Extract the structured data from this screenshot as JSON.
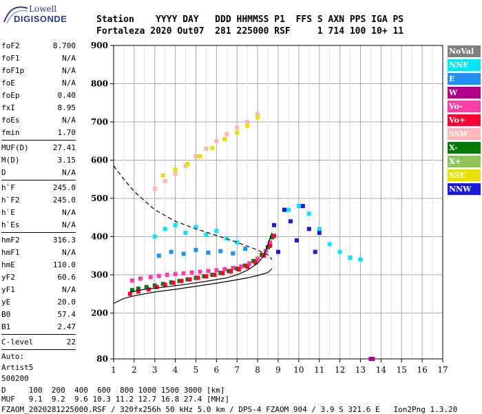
{
  "logo": {
    "line1": "Lowell",
    "line2": "DIGISONDE"
  },
  "header": {
    "row1": "Station    YYYY DAY   DDD HHMMSS P1  FFS S AXN PPS IGA PS",
    "row2": "Fortaleza 2020 Out07  281 225000 RSF     1 714 100 10+ 11"
  },
  "params": {
    "group1": [
      {
        "k": "foF2",
        "v": "8.700"
      },
      {
        "k": "foF1",
        "v": "N/A"
      },
      {
        "k": "foF1p",
        "v": "N/A"
      },
      {
        "k": "foE",
        "v": "N/A"
      },
      {
        "k": "foEp",
        "v": "0.40"
      },
      {
        "k": "fxI",
        "v": "8.95"
      },
      {
        "k": "foEs",
        "v": "N/A"
      },
      {
        "k": "fmin",
        "v": "1.70"
      }
    ],
    "group2": [
      {
        "k": "MUF(D)",
        "v": "27.41"
      },
      {
        "k": "M(D)",
        "v": "3.15"
      },
      {
        "k": "D",
        "v": "N/A"
      }
    ],
    "group3": [
      {
        "k": "h`F",
        "v": "245.0"
      },
      {
        "k": "h`F2",
        "v": "245.0"
      },
      {
        "k": "h`E",
        "v": "N/A"
      },
      {
        "k": "h`Es",
        "v": "N/A"
      }
    ],
    "group4": [
      {
        "k": "hmF2",
        "v": "316.3"
      },
      {
        "k": "hmF1",
        "v": "N/A"
      },
      {
        "k": "hmE",
        "v": "110.0"
      },
      {
        "k": "yF2",
        "v": "60.6"
      },
      {
        "k": "yF1",
        "v": "N/A"
      },
      {
        "k": "yE",
        "v": "20.0"
      },
      {
        "k": "B0",
        "v": "57.4"
      },
      {
        "k": "B1",
        "v": "2.47"
      }
    ],
    "group5": [
      {
        "k": "C-level",
        "v": "22"
      }
    ],
    "tail": [
      "Auto:",
      "Artist5",
      "500200"
    ]
  },
  "legend": [
    {
      "label": "NoVal",
      "color": "#7f7f7f"
    },
    {
      "label": "NNE",
      "color": "#00e5ff"
    },
    {
      "label": "E",
      "color": "#1e90ff"
    },
    {
      "label": "W",
      "color": "#b0008a"
    },
    {
      "label": "Vo-",
      "color": "#ff3fa6"
    },
    {
      "label": "Vo+",
      "color": "#ff0035"
    },
    {
      "label": "SSW",
      "color": "#ffb6b6"
    },
    {
      "label": "X-",
      "color": "#007a00"
    },
    {
      "label": "X+",
      "color": "#8fc45a"
    },
    {
      "label": "SSE",
      "color": "#e8e000"
    },
    {
      "label": "NNW",
      "color": "#1a1adb"
    }
  ],
  "footer": {
    "row1": "D     100  200  400  600  800 1000 1500 3000 [km]",
    "row2": "MUF   9.1  9.2  9.6 10.3 11.2 12.7 16.8 27.4 [MHz]",
    "row3": "FZAOM_2020281225000.RSF / 320fx256h 50 kHz 5.0 km / DPS-4 FZAOM 904 / 3.9 S 321.6 E   Ion2Png 1.3.20"
  },
  "chart_data": {
    "type": "scatter",
    "x_ticks": [
      1,
      2,
      3,
      4,
      5,
      6,
      7,
      8,
      9,
      10,
      11,
      12,
      13,
      14,
      15,
      16,
      17
    ],
    "y_ticks": [
      80,
      200,
      300,
      400,
      500,
      600,
      700,
      800,
      900
    ],
    "xlim": [
      1,
      17
    ],
    "ylim": [
      80,
      900
    ],
    "grid": true,
    "lines": [
      {
        "style": "solid",
        "x": [
          1.0,
          1.5,
          2.0,
          3.0,
          4.0,
          5.0,
          6.0,
          7.0,
          7.5,
          8.0,
          8.5,
          8.7
        ],
        "y": [
          225,
          238,
          245,
          255,
          262,
          270,
          278,
          287,
          292,
          298,
          306,
          316
        ]
      },
      {
        "style": "dashed",
        "x": [
          1.0,
          1.5,
          2.0,
          3.0,
          4.0,
          5.0,
          6.0,
          7.0,
          7.5,
          8.0,
          8.5,
          8.7
        ],
        "y": [
          585,
          550,
          518,
          470,
          440,
          420,
          403,
          385,
          375,
          365,
          352,
          340
        ]
      },
      {
        "style": "solid",
        "x": [
          1.8,
          2.5,
          3.5,
          4.5,
          5.5,
          6.5,
          7.0,
          7.5,
          8.0,
          8.3,
          8.5,
          8.7
        ],
        "y": [
          255,
          262,
          268,
          275,
          283,
          292,
          300,
          312,
          330,
          350,
          380,
          410
        ]
      }
    ],
    "series": [
      {
        "name": "X-",
        "x": [
          1.9,
          2.2,
          2.6,
          3.0,
          3.4,
          3.8,
          4.2,
          4.6,
          5.0,
          5.4,
          5.8,
          6.2,
          6.6,
          7.0,
          7.4,
          7.8,
          8.2,
          8.5,
          8.7
        ],
        "y": [
          260,
          264,
          268,
          272,
          276,
          280,
          284,
          288,
          292,
          296,
          300,
          305,
          310,
          316,
          324,
          336,
          352,
          372,
          398
        ]
      },
      {
        "name": "Vo-",
        "x": [
          1.9,
          2.3,
          2.8,
          3.2,
          3.6,
          4.0,
          4.4,
          4.8,
          5.2,
          5.6,
          6.0,
          6.4,
          6.8,
          7.2,
          7.6,
          8.0,
          8.4,
          8.6
        ],
        "y": [
          285,
          290,
          294,
          297,
          300,
          302,
          304,
          306,
          308,
          310,
          312,
          315,
          318,
          322,
          330,
          342,
          362,
          385
        ]
      },
      {
        "name": "Vo+",
        "x": [
          1.8,
          2.2,
          2.7,
          3.1,
          3.5,
          3.9,
          4.3,
          4.7,
          5.1,
          5.5,
          5.9,
          6.3,
          6.7,
          7.1,
          7.5,
          7.9,
          8.3,
          8.6,
          8.8
        ],
        "y": [
          250,
          256,
          262,
          268,
          274,
          279,
          284,
          288,
          292,
          296,
          300,
          304,
          309,
          314,
          321,
          332,
          350,
          376,
          402
        ]
      },
      {
        "name": "NNE",
        "x": [
          3.0,
          3.5,
          4.0,
          4.5,
          5.0,
          5.5,
          6.0,
          6.5,
          7.0,
          9.5,
          10.0,
          10.5,
          11.0,
          11.5,
          12.0,
          12.5,
          13.0
        ],
        "y": [
          400,
          420,
          430,
          410,
          425,
          405,
          415,
          395,
          385,
          470,
          480,
          460,
          420,
          380,
          360,
          345,
          340
        ]
      },
      {
        "name": "E",
        "x": [
          3.2,
          3.8,
          4.4,
          5.0,
          5.6,
          6.2,
          6.8,
          7.4
        ],
        "y": [
          350,
          360,
          355,
          365,
          358,
          362,
          356,
          368
        ]
      },
      {
        "name": "NNW",
        "x": [
          8.8,
          9.0,
          9.3,
          9.6,
          9.9,
          10.2,
          10.5,
          10.8,
          11.0
        ],
        "y": [
          430,
          360,
          470,
          440,
          390,
          480,
          420,
          360,
          410
        ]
      },
      {
        "name": "W",
        "x": [
          13.5,
          13.6
        ],
        "y": [
          80,
          80
        ]
      },
      {
        "name": "SSW",
        "x": [
          3.0,
          3.5,
          4.0,
          4.5,
          5.0,
          5.5,
          6.0,
          6.5,
          7.0,
          7.5,
          8.0
        ],
        "y": [
          525,
          545,
          565,
          585,
          610,
          630,
          650,
          668,
          685,
          700,
          720
        ]
      },
      {
        "name": "SSE",
        "x": [
          3.4,
          4.0,
          4.6,
          5.2,
          5.8,
          6.4,
          7.0,
          7.5,
          8.0
        ],
        "y": [
          560,
          575,
          590,
          610,
          632,
          655,
          672,
          690,
          712
        ]
      }
    ]
  }
}
